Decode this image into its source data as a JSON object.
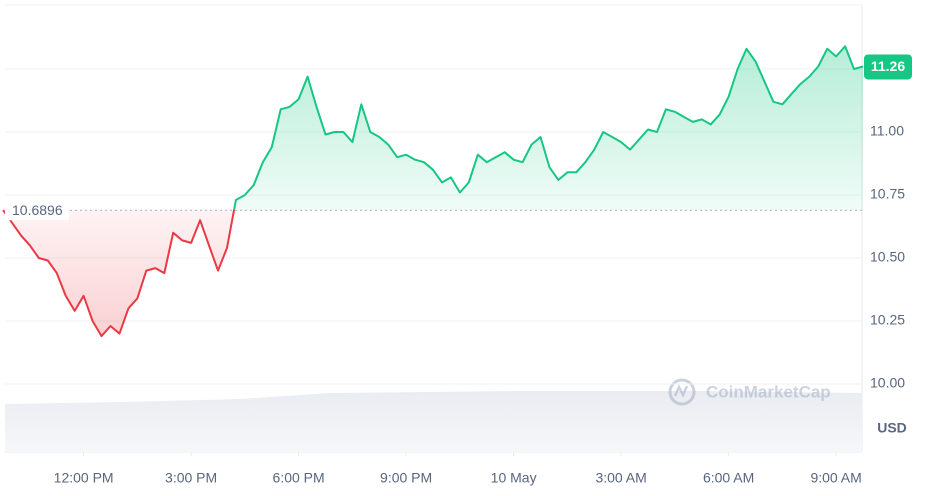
{
  "chart_data": {
    "type": "line",
    "x": [
      -2.25,
      -2,
      -1.75,
      -1.5,
      -1.25,
      -1,
      -0.75,
      -0.5,
      -0.25,
      0,
      0.25,
      0.5,
      0.75,
      1,
      1.25,
      1.5,
      1.75,
      2,
      2.25,
      2.5,
      2.75,
      3,
      3.25,
      3.5,
      3.75,
      4,
      4.25,
      4.5,
      4.75,
      5,
      5.25,
      5.5,
      5.75,
      6,
      6.25,
      6.5,
      6.75,
      7,
      7.25,
      7.5,
      7.75,
      8,
      8.25,
      8.5,
      8.75,
      9,
      9.25,
      9.5,
      9.75,
      10,
      10.25,
      10.5,
      10.75,
      11,
      11.25,
      11.5,
      11.75,
      12,
      12.25,
      12.5,
      12.75,
      13,
      13.25,
      13.5,
      13.75,
      14,
      14.25,
      14.5,
      14.75,
      15,
      15.25,
      15.5,
      15.75,
      16,
      16.25,
      16.5,
      16.75,
      17,
      17.25,
      17.5,
      17.75,
      18,
      18.25,
      18.5,
      18.75,
      19,
      19.25,
      19.5,
      19.75,
      20,
      20.25,
      20.5,
      20.75,
      21,
      21.25,
      21.5,
      21.75
    ],
    "values": [
      10.69,
      10.64,
      10.59,
      10.55,
      10.5,
      10.49,
      10.44,
      10.35,
      10.29,
      10.35,
      10.25,
      10.19,
      10.23,
      10.2,
      10.3,
      10.34,
      10.45,
      10.46,
      10.44,
      10.6,
      10.57,
      10.56,
      10.65,
      10.55,
      10.45,
      10.54,
      10.73,
      10.75,
      10.79,
      10.88,
      10.94,
      11.09,
      11.1,
      11.13,
      11.22,
      11.1,
      10.99,
      11,
      11,
      10.96,
      11.11,
      11,
      10.98,
      10.95,
      10.9,
      10.91,
      10.89,
      10.88,
      10.85,
      10.8,
      10.82,
      10.76,
      10.8,
      10.91,
      10.88,
      10.9,
      10.92,
      10.89,
      10.88,
      10.95,
      10.98,
      10.86,
      10.81,
      10.84,
      10.84,
      10.88,
      10.93,
      11,
      10.98,
      10.96,
      10.93,
      10.97,
      11.01,
      11,
      11.09,
      11.08,
      11.06,
      11.04,
      11.05,
      11.03,
      11.07,
      11.14,
      11.25,
      11.33,
      11.28,
      11.2,
      11.12,
      11.11,
      11.15,
      11.19,
      11.22,
      11.26,
      11.33,
      11.3,
      11.34,
      11.25,
      11.26
    ],
    "baseline": 10.6896,
    "color_up": "#16c784",
    "color_down": "#ea3943",
    "xlim": [
      -2.25,
      21.75
    ],
    "xticks": [
      {
        "value": 0,
        "label": "12:00 PM"
      },
      {
        "value": 3,
        "label": "3:00 PM"
      },
      {
        "value": 6,
        "label": "6:00 PM"
      },
      {
        "value": 9,
        "label": "9:00 PM"
      },
      {
        "value": 12,
        "label": "10 May"
      },
      {
        "value": 15,
        "label": "3:00 AM"
      },
      {
        "value": 18,
        "label": "6:00 AM"
      },
      {
        "value": 21,
        "label": "9:00 AM"
      }
    ],
    "ylim": [
      10,
      11.5
    ],
    "yticks": [
      {
        "value": 10,
        "label": "10.00"
      },
      {
        "value": 10.25,
        "label": "10.25"
      },
      {
        "value": 10.5,
        "label": "10.50"
      },
      {
        "value": 10.75,
        "label": "10.75"
      },
      {
        "value": 11,
        "label": "11.00"
      },
      {
        "value": 11.25,
        "label": "11.25"
      }
    ],
    "grid": true,
    "unit": "USD",
    "watermark": "CoinMarketCap"
  }
}
